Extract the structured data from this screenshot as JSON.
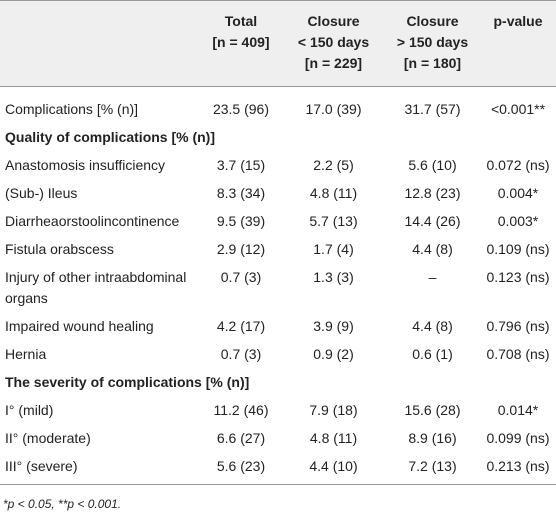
{
  "table": {
    "header": [
      [],
      [
        "Total",
        "[n = 409]"
      ],
      [
        "Closure",
        "< 150 days",
        "[n = 229]"
      ],
      [
        "Closure",
        "> 150 days",
        "[n = 180]"
      ],
      [
        "p-value"
      ]
    ],
    "rows": [
      [
        "Complications [% (n)]",
        "23.5 (96)",
        "17.0 (39)",
        "31.7 (57)",
        "<0.001**"
      ],
      [
        "Quality of complications [% (n)]"
      ],
      [
        "Anastomosis insufficiency",
        "3.7 (15)",
        "2.2 (5)",
        "5.6 (10)",
        "0.072 (ns)"
      ],
      [
        "(Sub-) Ileus",
        "8.3 (34)",
        "4.8 (11)",
        "12.8 (23)",
        "0.004*"
      ],
      [
        "Diarrheaorstoolincontinence",
        "9.5 (39)",
        "5.7 (13)",
        "14.4 (26)",
        "0.003*"
      ],
      [
        "Fistula orabscess",
        "2.9 (12)",
        "1.7 (4)",
        "4.4 (8)",
        "0.109 (ns)"
      ],
      [
        "Injury of other intraabdominal organs",
        "0.7 (3)",
        "1.3 (3)",
        "–",
        "0.123 (ns)"
      ],
      [
        "Impaired wound healing",
        "4.2 (17)",
        "3.9 (9)",
        "4.4 (8)",
        "0.796 (ns)"
      ],
      [
        "Hernia",
        "0.7 (3)",
        "0.9 (2)",
        "0.6 (1)",
        "0.708 (ns)"
      ],
      [
        "The severity of complications [% (n)]"
      ],
      [
        "I° (mild)",
        "11.2 (46)",
        "7.9 (18)",
        "15.6 (28)",
        "0.014*"
      ],
      [
        "II° (moderate)",
        "6.6 (27)",
        "4.8 (11)",
        "8.9 (16)",
        "0.099 (ns)"
      ],
      [
        "III° (severe)",
        "5.6 (23)",
        "4.4 (10)",
        "7.2 (13)",
        "0.213 (ns)"
      ]
    ],
    "footnote": "*p < 0.05, **p < 0.001."
  }
}
